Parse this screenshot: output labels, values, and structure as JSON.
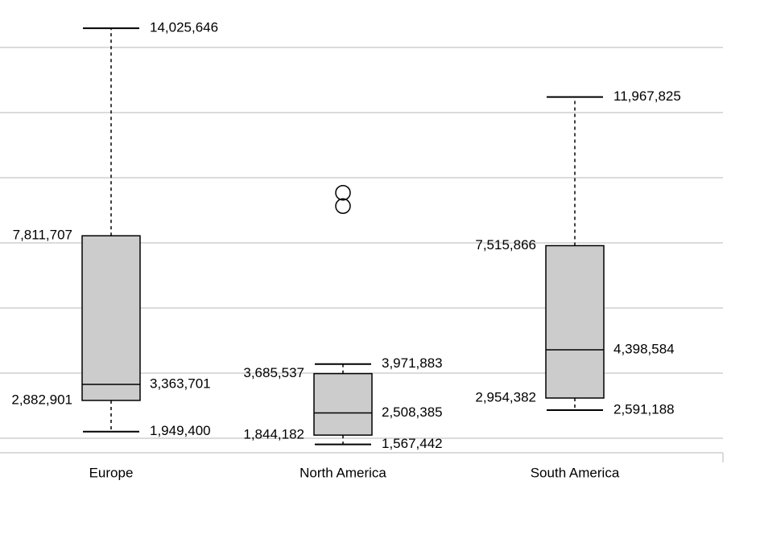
{
  "chart_data": {
    "type": "box",
    "ylim": [
      1050000,
      14450000
    ],
    "yticks": [
      1750000,
      3700000,
      5650000,
      7600000,
      9550000,
      11500000,
      13450000
    ],
    "grid": true,
    "categories": [
      "Europe",
      "North America",
      "South America"
    ],
    "boxes": [
      {
        "category": "Europe",
        "min": 1949400,
        "q1": 2882901,
        "median": 3363701,
        "q3": 7811707,
        "max": 14025646,
        "outliers": [],
        "labels": {
          "min": "1,949,400",
          "q1": "2,882,901",
          "median": "3,363,701",
          "q3": "7,811,707",
          "max": "14,025,646"
        }
      },
      {
        "category": "North America",
        "min": 1567442,
        "q1": 1844182,
        "median": 2508385,
        "q3": 3685537,
        "max": 3971883,
        "outliers": [
          8700000,
          9100000
        ],
        "labels": {
          "min": "1,567,442",
          "q1": "1,844,182",
          "median": "2,508,385",
          "q3": "3,685,537",
          "max": "3,971,883"
        }
      },
      {
        "category": "South America",
        "min": 2591188,
        "q1": 2954382,
        "median": 4398584,
        "q3": 7515866,
        "max": 11967825,
        "outliers": [],
        "labels": {
          "min": "2,591,188",
          "q1": "2,954,382",
          "median": "4,398,584",
          "q3": "7,515,866",
          "max": "11,967,825"
        }
      }
    ]
  }
}
